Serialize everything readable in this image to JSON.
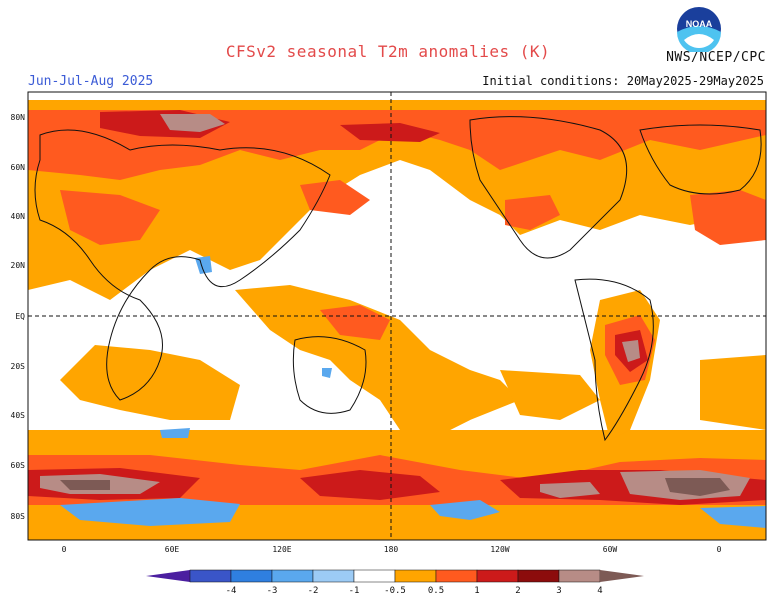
{
  "header": {
    "title": "CFSv2 seasonal T2m anomalies (K)",
    "season": "Jun-Jul-Aug 2025",
    "initial_conditions": "Initial conditions: 20May2025-29May2025",
    "agency": "NWS/NCEP/CPC",
    "logo_text": "NOAA"
  },
  "map": {
    "lat_labels": [
      "80N",
      "60N",
      "40N",
      "20N",
      "EQ",
      "20S",
      "40S",
      "60S",
      "80S"
    ],
    "lon_labels": [
      "0",
      "60E",
      "120E",
      "180",
      "120W",
      "60W",
      "0"
    ]
  },
  "legend": {
    "ticks": [
      "-4",
      "-3",
      "-2",
      "-1",
      "-0.5",
      "0.5",
      "1",
      "2",
      "3",
      "4"
    ],
    "colors": [
      "#4b1fa0",
      "#3a55c8",
      "#2f7fe0",
      "#5aa8ee",
      "#9ccbf5",
      "#ffffff",
      "#ffa500",
      "#ff5a1f",
      "#cc1a1a",
      "#8c0c0c",
      "#b78c86",
      "#7d5a55"
    ]
  }
}
